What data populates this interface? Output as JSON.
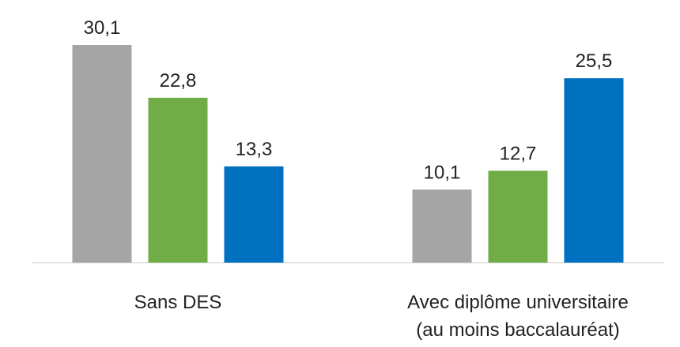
{
  "chart_data": {
    "type": "bar",
    "categories": [
      "Sans DES",
      "Avec diplôme universitaire\n(au moins baccalauréat)"
    ],
    "series": [
      {
        "color": "#a5a5a5",
        "values": [
          30.1,
          10.1
        ],
        "value_labels": [
          "30,1",
          "10,1"
        ]
      },
      {
        "color": "#70ad47",
        "values": [
          22.8,
          12.7
        ],
        "value_labels": [
          "22,8",
          "12,7"
        ]
      },
      {
        "color": "#0070c0",
        "values": [
          13.3,
          25.5
        ],
        "value_labels": [
          "13,3",
          "25,5"
        ]
      }
    ]
  }
}
